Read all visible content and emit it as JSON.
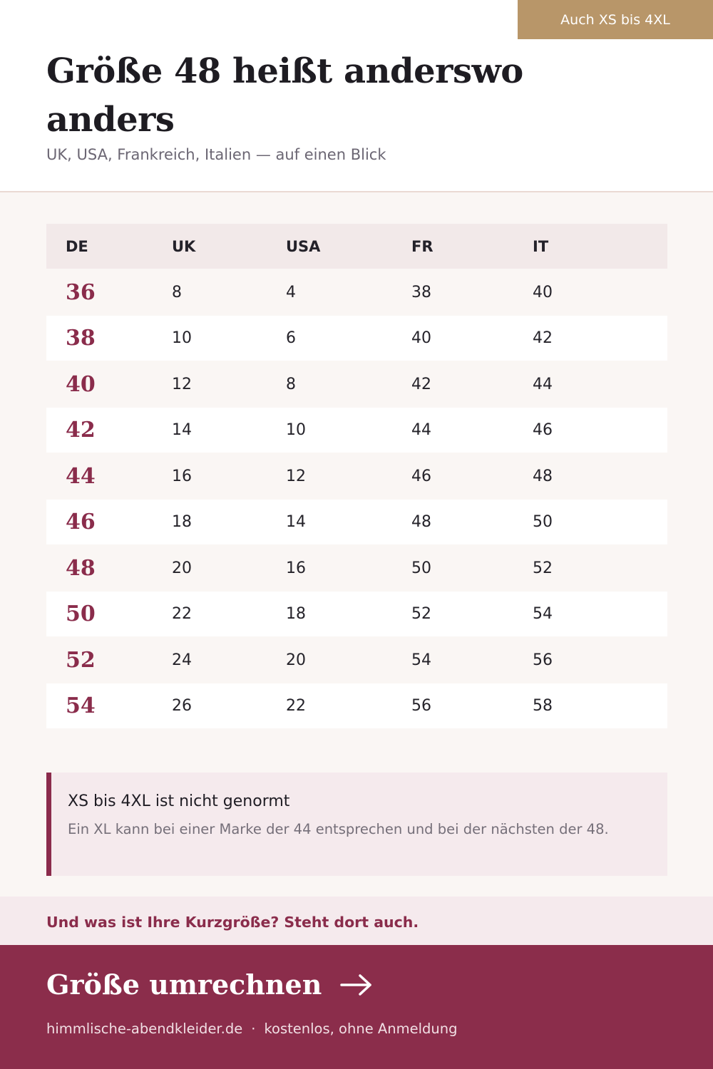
{
  "badge": {
    "label": "Auch XS bis 4XL"
  },
  "header": {
    "title": "Größe 48 heißt anderswo anders",
    "subtitle": "UK, USA, Frankreich, Italien — auf einen Blick"
  },
  "table": {
    "columns": [
      "DE",
      "UK",
      "USA",
      "FR",
      "IT"
    ],
    "rows": [
      [
        "36",
        "8",
        "4",
        "38",
        "40"
      ],
      [
        "38",
        "10",
        "6",
        "40",
        "42"
      ],
      [
        "40",
        "12",
        "8",
        "42",
        "44"
      ],
      [
        "42",
        "14",
        "10",
        "44",
        "46"
      ],
      [
        "44",
        "16",
        "12",
        "46",
        "48"
      ],
      [
        "46",
        "18",
        "14",
        "48",
        "50"
      ],
      [
        "48",
        "20",
        "16",
        "50",
        "52"
      ],
      [
        "50",
        "22",
        "18",
        "52",
        "54"
      ],
      [
        "52",
        "24",
        "20",
        "54",
        "56"
      ],
      [
        "54",
        "26",
        "22",
        "56",
        "58"
      ]
    ]
  },
  "note": {
    "title": "XS bis 4XL ist nicht genormt",
    "text": "Ein XL kann bei einer Marke der 44 entsprechen und bei der nächsten der 48."
  },
  "strip": {
    "text": "Und was ist Ihre Kurzgröße? Steht dort auch."
  },
  "footer": {
    "cta_label": "Größe umrechnen",
    "site": "himmlische-abendkleider.de",
    "separator": "·",
    "tagline": "kostenlos, ohne Anmeldung"
  },
  "colors": {
    "accent": "#8b2d4b",
    "badge": "#b89669",
    "note_bg": "#f5eaed",
    "page_bg": "#faf6f4"
  },
  "icons": {
    "cta": "arrow-right-icon"
  }
}
